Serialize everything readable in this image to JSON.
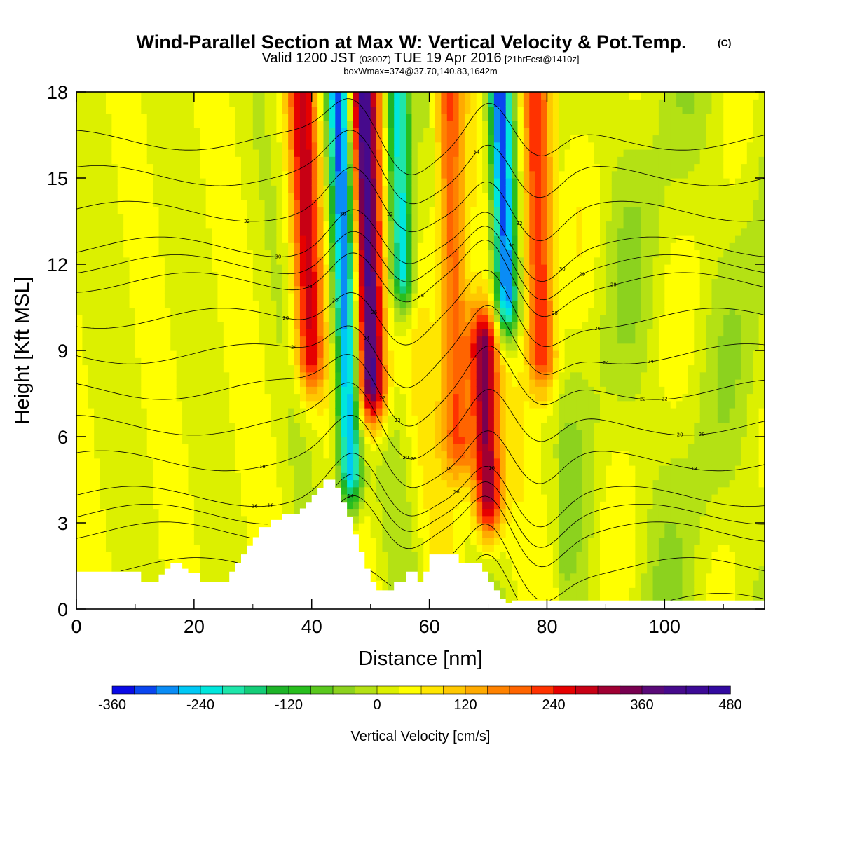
{
  "chart_data": {
    "type": "heatmap",
    "title": "Wind-Parallel Section at Max W: Vertical Velocity & Pot.Temp.",
    "title_mark": "(C)",
    "subtitle": {
      "valid_prefix": "Valid 1200 JST",
      "utc": "(0300Z)",
      "date": "TUE 19 Apr 2016",
      "forecast": "[21hrFcst@1410z]"
    },
    "box_info": "boxWmax=374@37.70,140.83,1642m",
    "xlabel": "Distance [nm]",
    "ylabel": "Height [Kft MSL]",
    "xlim": [
      0,
      117
    ],
    "ylim": [
      0,
      18
    ],
    "xticks": [
      0,
      20,
      40,
      60,
      80,
      100
    ],
    "yticks": [
      0,
      3,
      6,
      9,
      12,
      15,
      18
    ],
    "colorbar": {
      "label": "Vertical Velocity [cm/s]",
      "ticks": [
        -360,
        -240,
        -120,
        0,
        120,
        240,
        360,
        480
      ],
      "levels": [
        -360,
        -330,
        -300,
        -270,
        -240,
        -210,
        -180,
        -150,
        -120,
        -90,
        -60,
        -30,
        0,
        30,
        60,
        90,
        120,
        150,
        180,
        210,
        240,
        270,
        300,
        330,
        360,
        390,
        420,
        450,
        480
      ],
      "colors": [
        "#0a0ae6",
        "#0a46f0",
        "#0a8cf5",
        "#00c8f5",
        "#00e6dc",
        "#1ee6aa",
        "#14cd78",
        "#1eb428",
        "#28be1e",
        "#5ac81e",
        "#8cd21e",
        "#b4e114",
        "#dcf000",
        "#ffff00",
        "#ffe600",
        "#ffc800",
        "#ffaa00",
        "#ff8200",
        "#ff6400",
        "#ff3200",
        "#e60000",
        "#c80014",
        "#a00032",
        "#780050",
        "#5a0a78",
        "#460a8c",
        "#3c0a96",
        "#320aa0"
      ]
    },
    "w_features_cm_s": [
      {
        "x_nm": 49.5,
        "z_kft_range": [
          8,
          18
        ],
        "w_max": 420,
        "kind": "updraft"
      },
      {
        "x_nm": 45.5,
        "z_kft_range": [
          5,
          18
        ],
        "w_min": -330,
        "kind": "downdraft"
      },
      {
        "x_nm": 55.0,
        "z_kft_range": [
          12,
          18
        ],
        "w_min": -300,
        "kind": "downdraft"
      },
      {
        "x_nm": 72.5,
        "z_kft_range": [
          11,
          18
        ],
        "w_min": -360,
        "kind": "downdraft"
      },
      {
        "x_nm": 69.5,
        "z_kft_range": [
          4,
          9
        ],
        "w_max": 330,
        "kind": "updraft"
      },
      {
        "x_nm": 78.5,
        "z_kft_range": [
          9,
          18
        ],
        "w_max": 240,
        "kind": "updraft"
      },
      {
        "x_nm": 39.0,
        "z_kft_range": [
          9,
          18
        ],
        "w_max": 240,
        "kind": "updraft"
      },
      {
        "x_nm": 64.0,
        "z_kft_range": [
          6,
          18
        ],
        "w_max": 210,
        "kind": "updraft"
      }
    ],
    "theta_contours_C": [
      10,
      12,
      14,
      15,
      16,
      18,
      20,
      22,
      24,
      26,
      28,
      29,
      30,
      32,
      34,
      36
    ],
    "theta_labels": [
      "32",
      "30",
      "28",
      "26",
      "24",
      "22",
      "20",
      "18",
      "16",
      "30",
      "28",
      "26",
      "24",
      "22",
      "20",
      "18",
      "16",
      "26",
      "24",
      "30",
      "26",
      "22",
      "20",
      "16",
      "34",
      "32",
      "30",
      "29",
      "28",
      "24",
      "22",
      "20",
      "18",
      "16",
      "15",
      "14",
      "12",
      "32",
      "28",
      "10"
    ],
    "terrain_kft": {
      "x_nm": [
        0,
        11,
        11,
        14,
        14,
        15,
        15,
        16,
        16,
        18,
        18,
        19,
        19,
        21,
        21,
        26,
        26,
        27,
        27,
        28,
        28,
        29,
        29,
        30,
        30,
        31,
        31,
        33,
        33,
        35,
        35,
        38,
        38,
        39,
        39,
        40,
        40,
        41,
        41,
        42,
        42,
        44,
        44,
        45,
        45,
        46,
        46,
        47,
        47,
        48,
        48,
        49,
        49,
        50,
        50,
        51,
        51,
        52,
        52,
        54,
        54,
        56,
        56,
        58,
        58,
        59,
        59,
        60,
        60,
        61,
        61,
        65,
        65,
        69,
        69,
        70,
        70,
        71,
        71,
        72,
        72,
        73,
        73,
        74,
        74,
        75,
        75,
        117
      ],
      "z_kft": [
        1.3,
        1.3,
        0.95,
        0.95,
        1.2,
        1.2,
        1.4,
        1.4,
        1.6,
        1.6,
        1.4,
        1.4,
        1.25,
        1.25,
        0.95,
        0.95,
        1.3,
        1.3,
        1.6,
        1.6,
        1.9,
        1.9,
        2.2,
        2.2,
        2.5,
        2.5,
        2.85,
        2.85,
        3.1,
        3.1,
        3.3,
        3.3,
        3.5,
        3.5,
        3.7,
        3.7,
        3.95,
        3.95,
        4.2,
        4.2,
        4.5,
        4.5,
        4.2,
        4.2,
        3.7,
        3.7,
        3.2,
        3.2,
        2.6,
        2.6,
        2.0,
        2.0,
        1.4,
        1.4,
        0.95,
        0.95,
        0.65,
        0.65,
        0.65,
        0.65,
        0.95,
        0.95,
        1.3,
        1.3,
        0.95,
        0.95,
        1.3,
        1.3,
        1.9,
        1.9,
        1.9,
        1.9,
        1.6,
        1.6,
        1.3,
        1.3,
        0.95,
        0.95,
        0.65,
        0.65,
        0.35,
        0.35,
        0.2,
        0.2,
        0.3,
        0.3,
        0.3,
        0.3
      ]
    }
  }
}
